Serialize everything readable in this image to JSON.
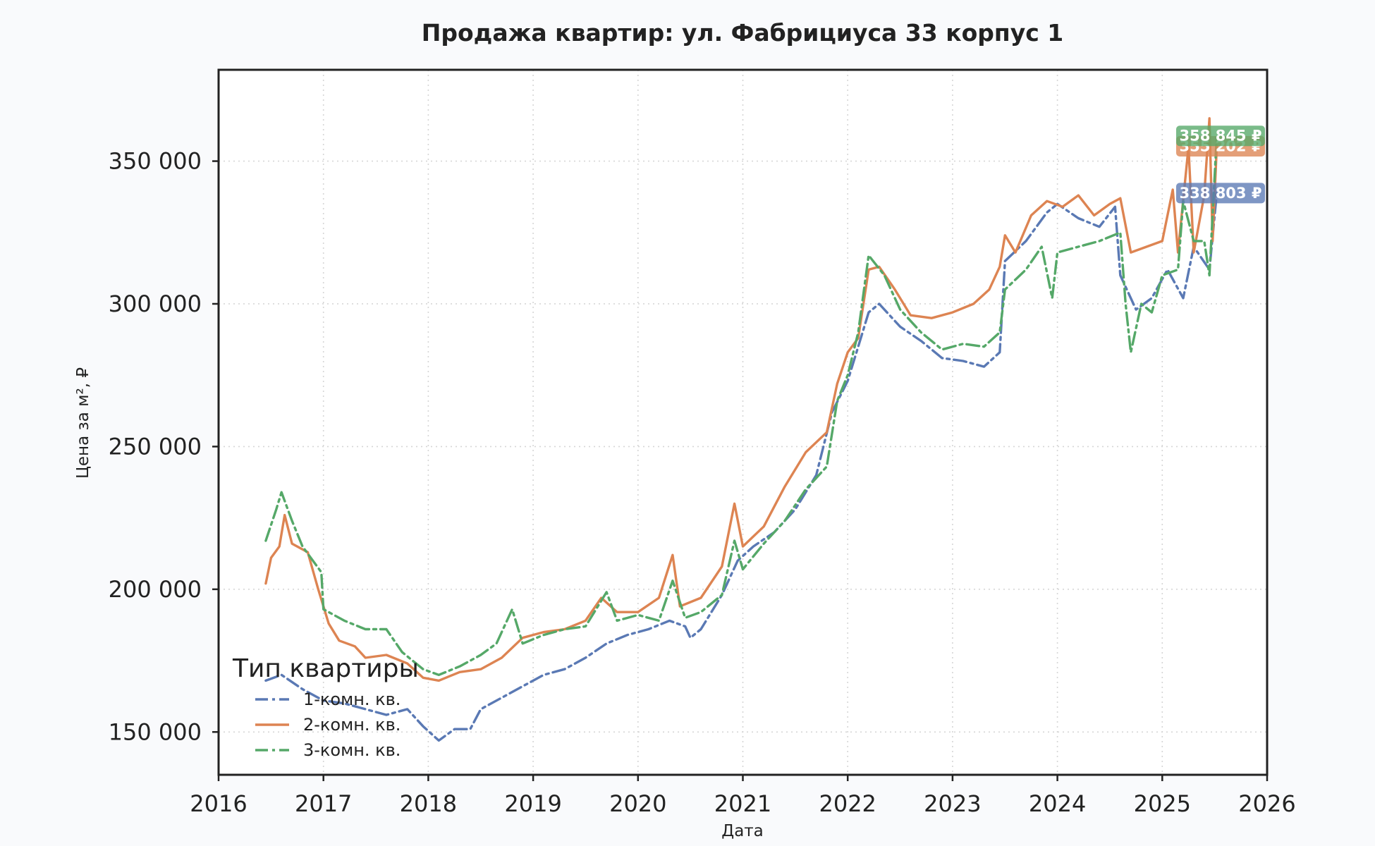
{
  "chart_data": {
    "type": "line",
    "title": "Продажа квартир: ул. Фабрициуса 33 корпус 1",
    "xlabel": "Дата",
    "ylabel": "Цена за м², ₽",
    "xlim": [
      2016,
      2026
    ],
    "ylim": [
      135000,
      382000
    ],
    "x_ticks": [
      2016,
      2017,
      2018,
      2019,
      2020,
      2021,
      2022,
      2023,
      2024,
      2025,
      2026
    ],
    "x_tick_labels": [
      "2016",
      "2017",
      "2018",
      "2019",
      "2020",
      "2021",
      "2022",
      "2023",
      "2024",
      "2025",
      "2026"
    ],
    "y_ticks": [
      150000,
      200000,
      250000,
      300000,
      350000
    ],
    "y_tick_labels": [
      "150 000",
      "200 000",
      "250 000",
      "300 000",
      "350 000"
    ],
    "grid": true,
    "legend": {
      "title": "Тип квартиры",
      "position": "bottom-left"
    },
    "series": [
      {
        "name": "1-комн. кв.",
        "color": "#5a79b4",
        "style": "dashdot",
        "end_label": "338 803 ₽",
        "points": [
          [
            2016.45,
            168000
          ],
          [
            2016.6,
            170000
          ],
          [
            2016.8,
            165000
          ],
          [
            2017.0,
            161000
          ],
          [
            2017.2,
            160000
          ],
          [
            2017.4,
            158000
          ],
          [
            2017.6,
            156000
          ],
          [
            2017.8,
            158000
          ],
          [
            2017.95,
            152000
          ],
          [
            2018.1,
            147000
          ],
          [
            2018.25,
            151000
          ],
          [
            2018.4,
            151000
          ],
          [
            2018.5,
            158000
          ],
          [
            2018.7,
            162000
          ],
          [
            2018.9,
            166000
          ],
          [
            2019.1,
            170000
          ],
          [
            2019.3,
            172000
          ],
          [
            2019.5,
            176000
          ],
          [
            2019.7,
            181000
          ],
          [
            2019.9,
            184000
          ],
          [
            2020.1,
            186000
          ],
          [
            2020.3,
            189000
          ],
          [
            2020.45,
            187000
          ],
          [
            2020.5,
            183000
          ],
          [
            2020.6,
            186000
          ],
          [
            2020.8,
            198000
          ],
          [
            2020.95,
            210000
          ],
          [
            2021.1,
            215000
          ],
          [
            2021.3,
            220000
          ],
          [
            2021.5,
            228000
          ],
          [
            2021.7,
            240000
          ],
          [
            2021.85,
            262000
          ],
          [
            2022.0,
            273000
          ],
          [
            2022.1,
            285000
          ],
          [
            2022.2,
            297000
          ],
          [
            2022.3,
            300000
          ],
          [
            2022.5,
            292000
          ],
          [
            2022.7,
            287000
          ],
          [
            2022.9,
            281000
          ],
          [
            2023.1,
            280000
          ],
          [
            2023.3,
            278000
          ],
          [
            2023.45,
            283000
          ],
          [
            2023.5,
            315000
          ],
          [
            2023.7,
            322000
          ],
          [
            2023.9,
            332000
          ],
          [
            2024.0,
            335000
          ],
          [
            2024.2,
            330000
          ],
          [
            2024.4,
            327000
          ],
          [
            2024.55,
            334000
          ],
          [
            2024.6,
            310000
          ],
          [
            2024.75,
            298000
          ],
          [
            2024.9,
            302000
          ],
          [
            2025.05,
            312000
          ],
          [
            2025.2,
            302000
          ],
          [
            2025.3,
            320000
          ],
          [
            2025.45,
            312000
          ],
          [
            2025.52,
            338803
          ]
        ]
      },
      {
        "name": "2-комн. кв.",
        "color": "#dd8452",
        "style": "solid",
        "end_label": "355 202 ₽",
        "points": [
          [
            2016.45,
            202000
          ],
          [
            2016.5,
            211000
          ],
          [
            2016.58,
            215000
          ],
          [
            2016.63,
            226000
          ],
          [
            2016.7,
            216000
          ],
          [
            2016.85,
            213000
          ],
          [
            2016.95,
            200000
          ],
          [
            2017.05,
            188000
          ],
          [
            2017.15,
            182000
          ],
          [
            2017.3,
            180000
          ],
          [
            2017.4,
            176000
          ],
          [
            2017.6,
            177000
          ],
          [
            2017.8,
            174000
          ],
          [
            2017.95,
            169000
          ],
          [
            2018.1,
            168000
          ],
          [
            2018.3,
            171000
          ],
          [
            2018.5,
            172000
          ],
          [
            2018.7,
            176000
          ],
          [
            2018.9,
            183000
          ],
          [
            2019.1,
            185000
          ],
          [
            2019.3,
            186000
          ],
          [
            2019.5,
            189000
          ],
          [
            2019.65,
            197000
          ],
          [
            2019.8,
            192000
          ],
          [
            2020.0,
            192000
          ],
          [
            2020.2,
            197000
          ],
          [
            2020.33,
            212000
          ],
          [
            2020.4,
            194000
          ],
          [
            2020.6,
            197000
          ],
          [
            2020.8,
            208000
          ],
          [
            2020.92,
            230000
          ],
          [
            2021.0,
            215000
          ],
          [
            2021.2,
            222000
          ],
          [
            2021.4,
            236000
          ],
          [
            2021.6,
            248000
          ],
          [
            2021.8,
            255000
          ],
          [
            2021.9,
            272000
          ],
          [
            2022.0,
            283000
          ],
          [
            2022.1,
            288000
          ],
          [
            2022.2,
            312000
          ],
          [
            2022.3,
            313000
          ],
          [
            2022.45,
            305000
          ],
          [
            2022.6,
            296000
          ],
          [
            2022.8,
            295000
          ],
          [
            2023.0,
            297000
          ],
          [
            2023.2,
            300000
          ],
          [
            2023.35,
            305000
          ],
          [
            2023.45,
            313000
          ],
          [
            2023.5,
            324000
          ],
          [
            2023.6,
            318000
          ],
          [
            2023.75,
            331000
          ],
          [
            2023.9,
            336000
          ],
          [
            2024.05,
            334000
          ],
          [
            2024.2,
            338000
          ],
          [
            2024.35,
            331000
          ],
          [
            2024.5,
            335000
          ],
          [
            2024.6,
            337000
          ],
          [
            2024.7,
            318000
          ],
          [
            2024.85,
            320000
          ],
          [
            2025.0,
            322000
          ],
          [
            2025.1,
            340000
          ],
          [
            2025.15,
            318000
          ],
          [
            2025.25,
            355000
          ],
          [
            2025.3,
            318000
          ],
          [
            2025.4,
            338000
          ],
          [
            2025.45,
            365000
          ],
          [
            2025.48,
            322000
          ],
          [
            2025.52,
            355202
          ]
        ]
      },
      {
        "name": "3-комн. кв.",
        "color": "#55a868",
        "style": "dashdot",
        "end_label": "358 845 ₽",
        "points": [
          [
            2016.45,
            217000
          ],
          [
            2016.55,
            228000
          ],
          [
            2016.6,
            234000
          ],
          [
            2016.7,
            224000
          ],
          [
            2016.8,
            215000
          ],
          [
            2016.9,
            210000
          ],
          [
            2016.98,
            206000
          ],
          [
            2017.0,
            193000
          ],
          [
            2017.2,
            189000
          ],
          [
            2017.4,
            186000
          ],
          [
            2017.6,
            186000
          ],
          [
            2017.75,
            178000
          ],
          [
            2017.95,
            172000
          ],
          [
            2018.1,
            170000
          ],
          [
            2018.3,
            173000
          ],
          [
            2018.5,
            177000
          ],
          [
            2018.65,
            181000
          ],
          [
            2018.8,
            193000
          ],
          [
            2018.9,
            181000
          ],
          [
            2019.1,
            184000
          ],
          [
            2019.3,
            186000
          ],
          [
            2019.5,
            187000
          ],
          [
            2019.7,
            199000
          ],
          [
            2019.8,
            189000
          ],
          [
            2020.0,
            191000
          ],
          [
            2020.2,
            189000
          ],
          [
            2020.33,
            203000
          ],
          [
            2020.45,
            190000
          ],
          [
            2020.6,
            192000
          ],
          [
            2020.8,
            198000
          ],
          [
            2020.92,
            217000
          ],
          [
            2021.0,
            207000
          ],
          [
            2021.2,
            216000
          ],
          [
            2021.4,
            224000
          ],
          [
            2021.6,
            235000
          ],
          [
            2021.8,
            243000
          ],
          [
            2021.9,
            266000
          ],
          [
            2022.0,
            275000
          ],
          [
            2022.1,
            290000
          ],
          [
            2022.2,
            317000
          ],
          [
            2022.35,
            310000
          ],
          [
            2022.5,
            298000
          ],
          [
            2022.7,
            290000
          ],
          [
            2022.9,
            284000
          ],
          [
            2023.1,
            286000
          ],
          [
            2023.3,
            285000
          ],
          [
            2023.45,
            290000
          ],
          [
            2023.5,
            305000
          ],
          [
            2023.7,
            312000
          ],
          [
            2023.85,
            320000
          ],
          [
            2023.95,
            302000
          ],
          [
            2024.0,
            318000
          ],
          [
            2024.2,
            320000
          ],
          [
            2024.4,
            322000
          ],
          [
            2024.6,
            325000
          ],
          [
            2024.65,
            300000
          ],
          [
            2024.7,
            283000
          ],
          [
            2024.8,
            300000
          ],
          [
            2024.9,
            297000
          ],
          [
            2025.0,
            310000
          ],
          [
            2025.15,
            312000
          ],
          [
            2025.2,
            336000
          ],
          [
            2025.3,
            322000
          ],
          [
            2025.4,
            322000
          ],
          [
            2025.45,
            310000
          ],
          [
            2025.52,
            358845
          ]
        ]
      }
    ]
  }
}
